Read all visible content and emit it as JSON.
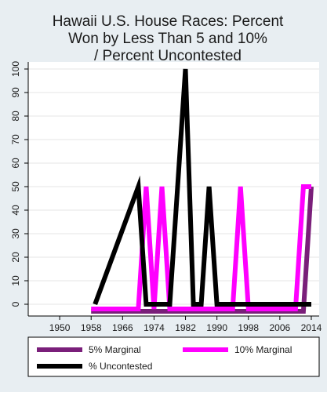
{
  "chart_data": {
    "type": "line",
    "title": [
      "Hawaii U.S. House Races: Percent",
      "Won by Less Than 5 and 10%",
      "/ Percent Uncontested"
    ],
    "xlim": [
      1942,
      2016
    ],
    "ylim": [
      -5,
      103
    ],
    "x_ticks": [
      1950,
      1958,
      1966,
      1974,
      1982,
      1990,
      1998,
      2006,
      2014
    ],
    "y_ticks": [
      0,
      10,
      20,
      30,
      40,
      50,
      60,
      70,
      80,
      90,
      100
    ],
    "grid": "y-major",
    "legend_position": "bottom",
    "series": [
      {
        "name": "5% Marginal",
        "color": "#7a1f7a",
        "points": [
          [
            1958,
            -3
          ],
          [
            1960,
            -3
          ],
          [
            1962,
            -3
          ],
          [
            1964,
            -3
          ],
          [
            1966,
            -3
          ],
          [
            1968,
            -3
          ],
          [
            1970,
            -3
          ],
          [
            1972,
            -3
          ],
          [
            1974,
            -3
          ],
          [
            1976,
            -3
          ],
          [
            1978,
            -3
          ],
          [
            1980,
            -3
          ],
          [
            1982,
            -3
          ],
          [
            1984,
            -3
          ],
          [
            1986,
            -3
          ],
          [
            1988,
            -3
          ],
          [
            1990,
            -3
          ],
          [
            1992,
            -3
          ],
          [
            1994,
            -3
          ],
          [
            1996,
            -3
          ],
          [
            1998,
            -3
          ],
          [
            2000,
            -3
          ],
          [
            2002,
            -3
          ],
          [
            2004,
            -3
          ],
          [
            2006,
            -3
          ],
          [
            2008,
            -3
          ],
          [
            2010,
            -3
          ],
          [
            2012,
            -3
          ],
          [
            2014,
            50
          ]
        ]
      },
      {
        "name": "10% Marginal",
        "color": "#ff00ff",
        "points": [
          [
            1958,
            -2
          ],
          [
            1960,
            -2
          ],
          [
            1962,
            -2
          ],
          [
            1964,
            -2
          ],
          [
            1966,
            -2
          ],
          [
            1968,
            -2
          ],
          [
            1970,
            -2
          ],
          [
            1972,
            50
          ],
          [
            1974,
            -2
          ],
          [
            1976,
            50
          ],
          [
            1978,
            -2
          ],
          [
            1980,
            -2
          ],
          [
            1982,
            -2
          ],
          [
            1984,
            -2
          ],
          [
            1986,
            -2
          ],
          [
            1988,
            -2
          ],
          [
            1990,
            -2
          ],
          [
            1992,
            -2
          ],
          [
            1994,
            -2
          ],
          [
            1996,
            50
          ],
          [
            1998,
            -2
          ],
          [
            2000,
            -2
          ],
          [
            2002,
            -2
          ],
          [
            2004,
            -2
          ],
          [
            2006,
            -2
          ],
          [
            2008,
            -2
          ],
          [
            2010,
            -2
          ],
          [
            2012,
            50
          ],
          [
            2014,
            50
          ]
        ]
      },
      {
        "name": "% Uncontested",
        "color": "#000000",
        "points": [
          [
            1959,
            0
          ],
          [
            1970,
            50
          ],
          [
            1972,
            0
          ],
          [
            1974,
            0
          ],
          [
            1976,
            0
          ],
          [
            1978,
            0
          ],
          [
            1980,
            50
          ],
          [
            1982,
            100
          ],
          [
            1984,
            0
          ],
          [
            1986,
            0
          ],
          [
            1988,
            50
          ],
          [
            1990,
            0
          ],
          [
            1992,
            0
          ],
          [
            1994,
            0
          ],
          [
            1996,
            0
          ],
          [
            1998,
            0
          ],
          [
            2000,
            0
          ],
          [
            2002,
            0
          ],
          [
            2004,
            0
          ],
          [
            2006,
            0
          ],
          [
            2008,
            0
          ],
          [
            2010,
            0
          ],
          [
            2012,
            0
          ],
          [
            2014,
            0
          ]
        ]
      }
    ]
  }
}
